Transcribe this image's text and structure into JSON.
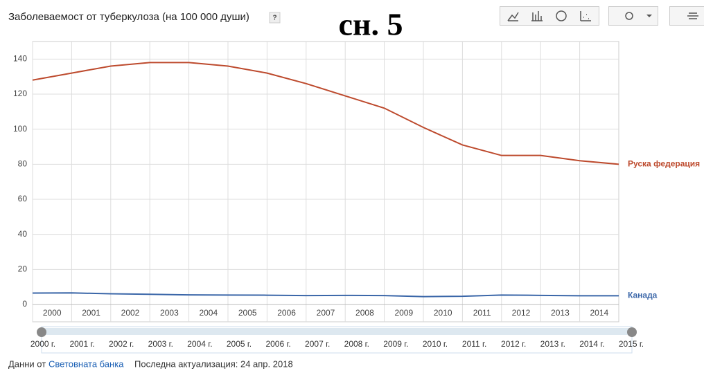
{
  "chart_data": {
    "type": "line",
    "title": "Заболеваемост от туберкулоза (на 100 000 души)",
    "help": "?",
    "x": [
      2000,
      2001,
      2002,
      2003,
      2004,
      2005,
      2006,
      2007,
      2008,
      2009,
      2010,
      2011,
      2012,
      2013,
      2014,
      2015
    ],
    "xlim": [
      2000,
      2015
    ],
    "xticks": [
      2000,
      2001,
      2002,
      2003,
      2004,
      2005,
      2006,
      2007,
      2008,
      2009,
      2010,
      2011,
      2012,
      2013,
      2014
    ],
    "ylim": [
      0,
      150
    ],
    "yticks": [
      0,
      20,
      40,
      60,
      80,
      100,
      120,
      140
    ],
    "grid": true,
    "series": [
      {
        "name": "Руска федерация",
        "color": "#bd4a2d",
        "values": [
          128,
          132,
          136,
          138,
          138,
          136,
          132,
          126,
          119,
          112,
          101,
          91,
          85,
          85,
          82,
          80
        ]
      },
      {
        "name": "Канада",
        "color": "#3a66a8",
        "values": [
          6.5,
          6.6,
          6.1,
          5.8,
          5.5,
          5.4,
          5.3,
          5.1,
          5.2,
          5.1,
          4.5,
          4.7,
          5.4,
          5.2,
          5.0,
          5.0
        ]
      }
    ]
  },
  "overlay": "сн. 5",
  "slider": {
    "labels": [
      "2000 г.",
      "2001 г.",
      "2002 г.",
      "2003 г.",
      "2004 г.",
      "2005 г.",
      "2006 г.",
      "2007 г.",
      "2008 г.",
      "2009 г.",
      "2010 г.",
      "2011 г.",
      "2012 г.",
      "2013 г.",
      "2014 г.",
      "2015 г."
    ]
  },
  "footer": {
    "source_prefix": "Данни от",
    "source_link": "Световната банка",
    "updated": "Последна актуализация: 24 апр. 2018"
  }
}
